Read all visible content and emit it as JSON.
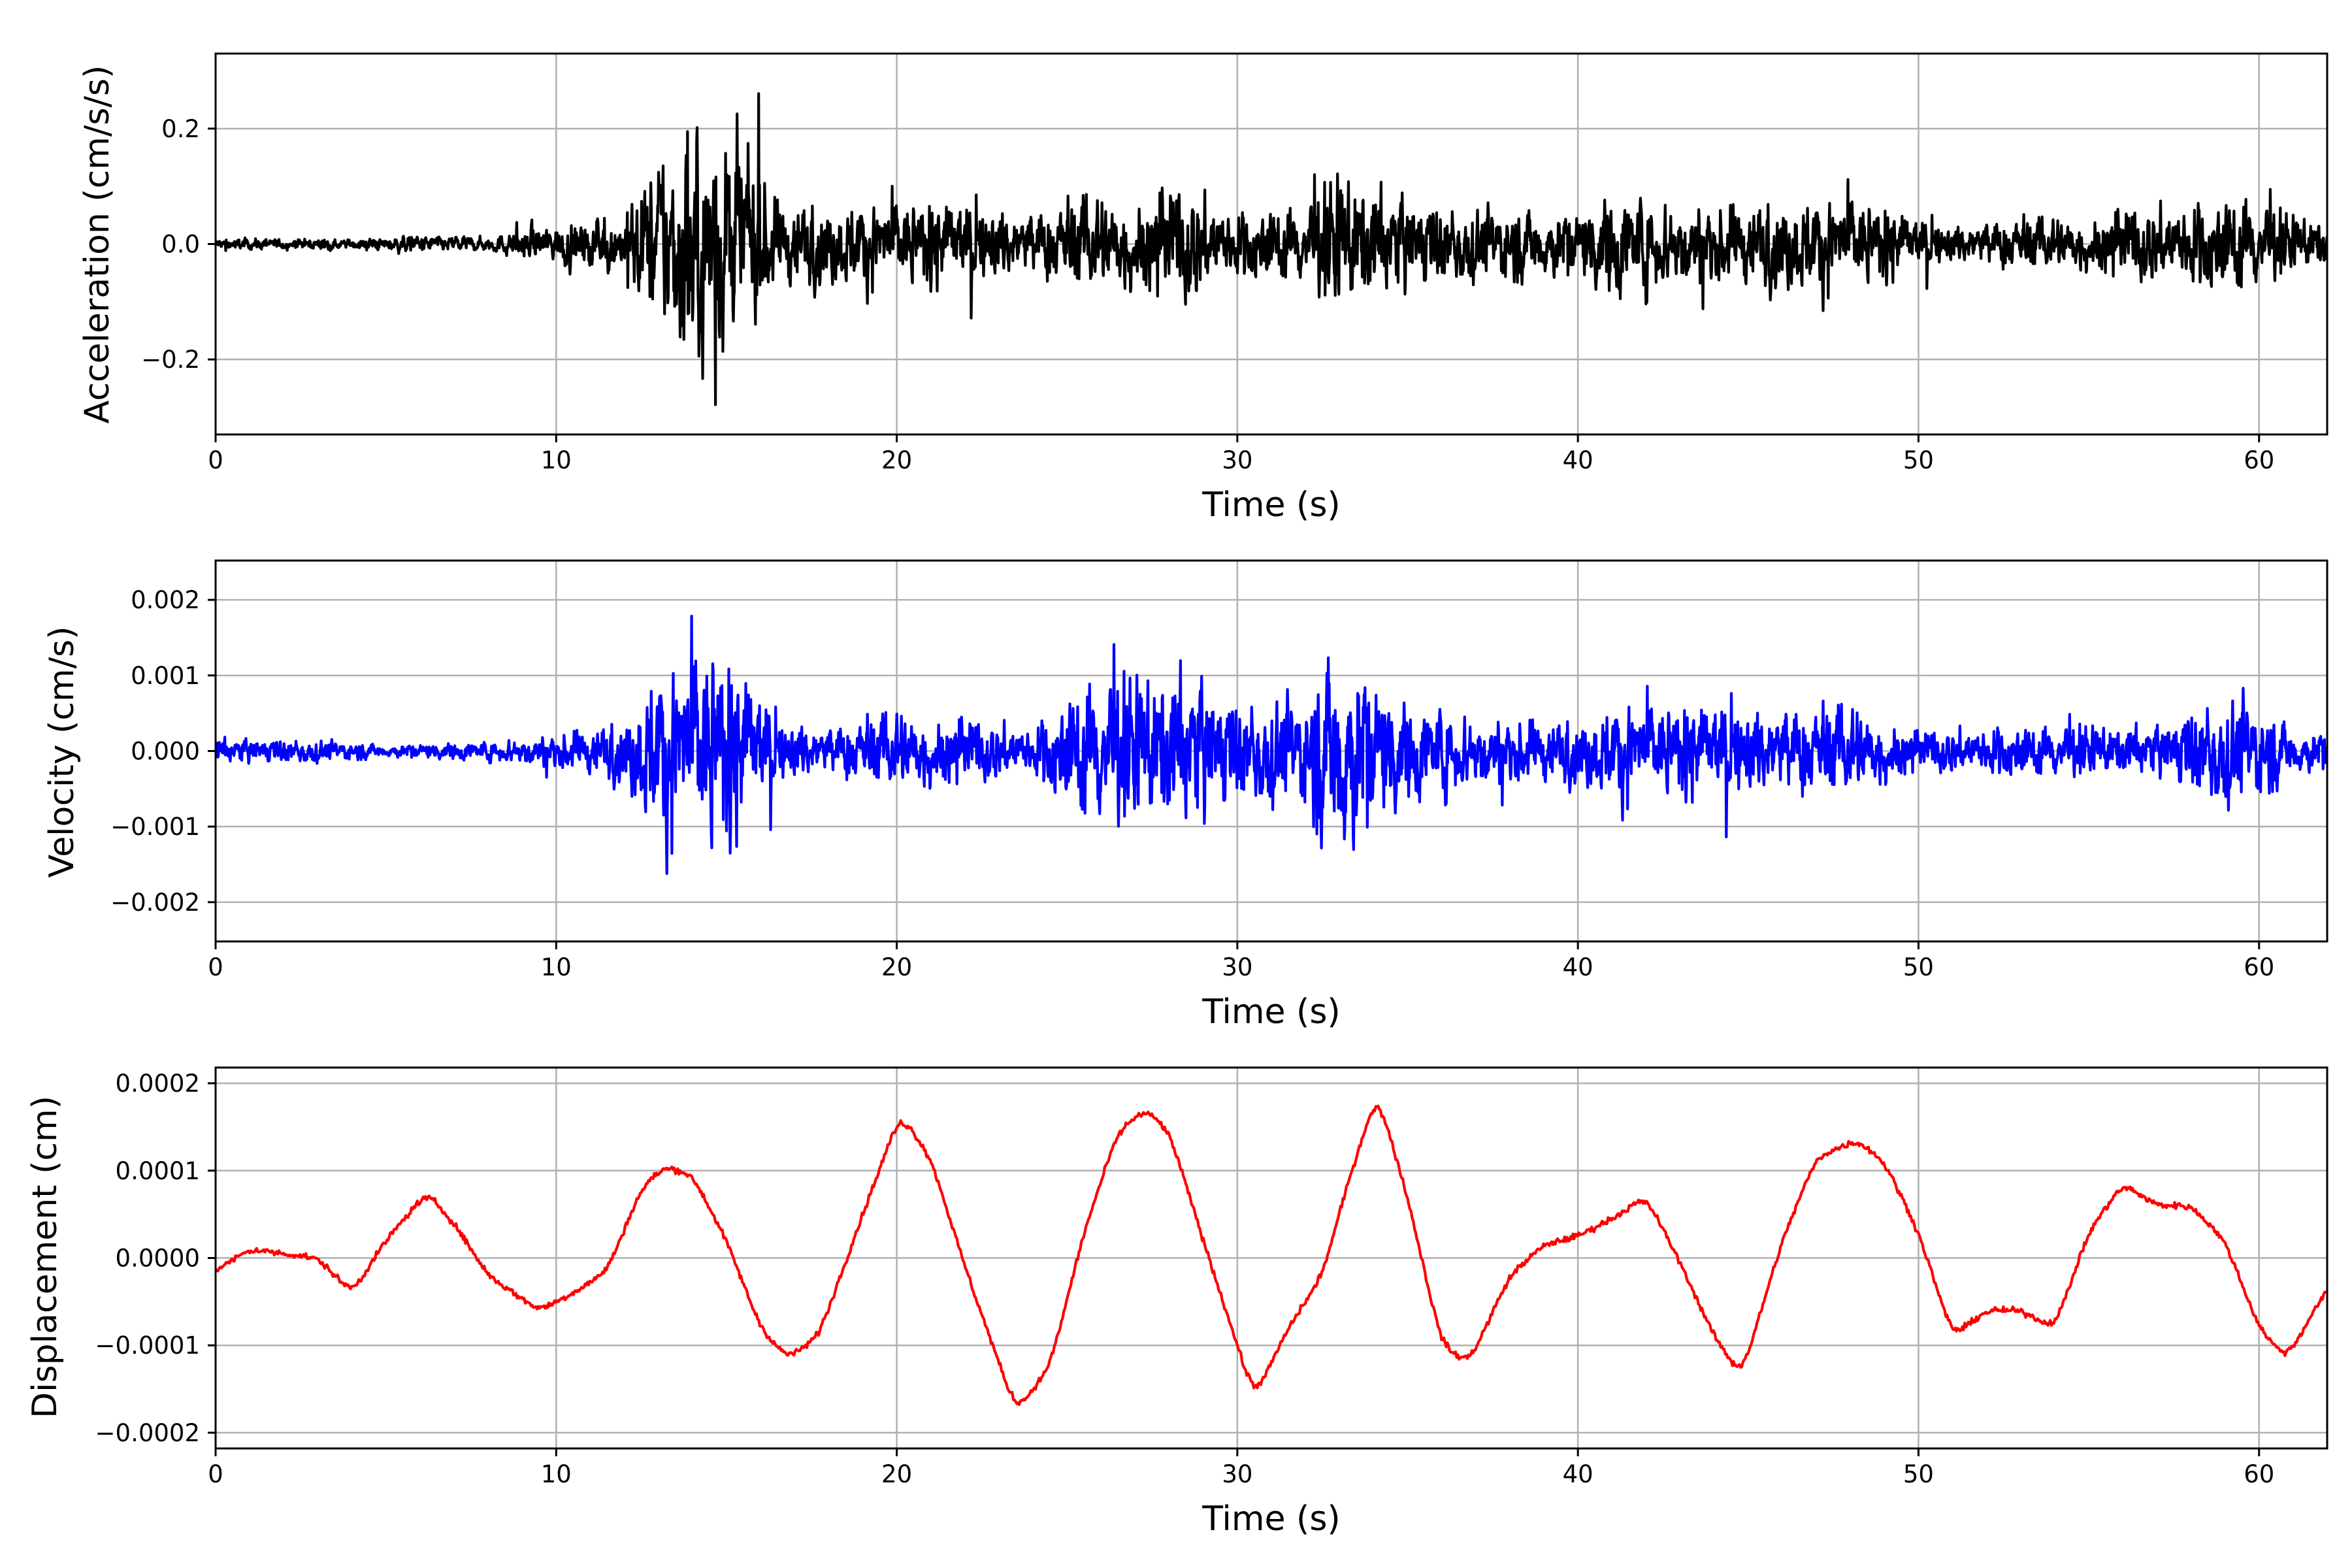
{
  "chart_data": [
    {
      "type": "line",
      "xlabel": "Time (s)",
      "ylabel": "Acceleration (cm/s/s)",
      "xlim": [
        0,
        62
      ],
      "ylim": [
        -0.33,
        0.33
      ],
      "x_ticks": [
        0,
        10,
        20,
        30,
        40,
        50,
        60
      ],
      "x_tick_labels": [
        "0",
        "10",
        "20",
        "30",
        "40",
        "50",
        "60"
      ],
      "y_ticks": [
        -0.2,
        0.0,
        0.2
      ],
      "y_tick_labels": [
        "−0.2",
        "0.0",
        "0.2"
      ],
      "grid": true,
      "color": "#000000",
      "signal": "noise",
      "envelope": {
        "t": [
          0,
          4,
          6,
          8,
          9.5,
          12,
          12.8,
          13.5,
          14.5,
          15.5,
          16.5,
          18,
          20,
          22,
          24,
          25.5,
          27,
          28.5,
          30,
          32,
          33,
          34,
          36,
          40,
          41,
          43,
          46,
          48,
          50,
          51,
          53,
          55,
          58,
          59.5,
          61,
          62
        ],
        "amplitude": [
          0.012,
          0.01,
          0.018,
          0.015,
          0.035,
          0.06,
          0.16,
          0.22,
          0.26,
          0.2,
          0.1,
          0.08,
          0.09,
          0.08,
          0.07,
          0.11,
          0.1,
          0.12,
          0.07,
          0.08,
          0.15,
          0.12,
          0.08,
          0.07,
          0.11,
          0.09,
          0.09,
          0.1,
          0.05,
          0.04,
          0.06,
          0.06,
          0.09,
          0.1,
          0.06,
          0.05
        ]
      }
    },
    {
      "type": "line",
      "xlabel": "Time (s)",
      "ylabel": "Velocity (cm/s)",
      "xlim": [
        0,
        62
      ],
      "ylim": [
        -0.00252,
        0.00252
      ],
      "x_ticks": [
        0,
        10,
        20,
        30,
        40,
        50,
        60
      ],
      "x_tick_labels": [
        "0",
        "10",
        "20",
        "30",
        "40",
        "50",
        "60"
      ],
      "y_ticks": [
        -0.002,
        -0.001,
        0.0,
        0.001,
        0.002
      ],
      "y_tick_labels": [
        "−0.002",
        "−0.001",
        "0.000",
        "0.001",
        "0.002"
      ],
      "grid": true,
      "color": "#0000ff",
      "signal": "noise",
      "envelope": {
        "t": [
          0,
          3,
          5,
          8,
          10,
          12,
          12.8,
          14,
          14.5,
          15.5,
          16.5,
          18,
          20,
          22,
          24,
          25.5,
          27,
          28.5,
          30,
          32,
          33,
          34,
          35,
          37,
          40,
          41.5,
          43,
          45,
          48,
          50,
          52,
          55,
          57,
          58.5,
          59.5,
          61,
          62
        ],
        "amplitude": [
          0.0002,
          0.00018,
          0.0001,
          0.00015,
          0.0003,
          0.0005,
          0.0012,
          0.0016,
          0.0017,
          0.0012,
          0.0005,
          0.0004,
          0.0007,
          0.0005,
          0.0004,
          0.0011,
          0.0012,
          0.0013,
          0.0008,
          0.0009,
          0.0019,
          0.0012,
          0.0008,
          0.0006,
          0.0005,
          0.0008,
          0.0007,
          0.0007,
          0.0008,
          0.0003,
          0.0004,
          0.0004,
          0.0004,
          0.0008,
          0.0009,
          0.0004,
          0.0003
        ]
      }
    },
    {
      "type": "line",
      "xlabel": "Time (s)",
      "ylabel": "Displacement (cm)",
      "xlim": [
        0,
        62
      ],
      "ylim": [
        -0.000218,
        0.000218
      ],
      "x_ticks": [
        0,
        10,
        20,
        30,
        40,
        50,
        60
      ],
      "x_tick_labels": [
        "0",
        "10",
        "20",
        "30",
        "40",
        "50",
        "60"
      ],
      "y_ticks": [
        -0.0002,
        -0.0001,
        0.0,
        0.0001,
        0.0002
      ],
      "y_tick_labels": [
        "−0.0002",
        "−0.0001",
        "0.0000",
        "0.0001",
        "0.0002"
      ],
      "grid": true,
      "color": "#ff0000",
      "signal": "curve",
      "x": [
        0,
        1,
        2,
        3,
        4,
        5,
        6.2,
        7,
        8,
        9.5,
        10.5,
        11.5,
        12.5,
        13.2,
        14,
        15,
        16,
        16.8,
        17.7,
        19,
        20.1,
        21,
        22,
        23.5,
        24.5,
        25.5,
        26.5,
        27.3,
        28,
        29,
        30.5,
        31.5,
        32.5,
        33.2,
        34.1,
        35,
        36,
        36.8,
        38,
        39,
        40,
        41,
        42,
        43,
        44,
        44.8,
        46,
        47,
        48.2,
        49,
        50,
        51,
        52,
        53,
        54,
        55,
        56,
        57,
        58,
        59,
        60,
        60.8,
        62
      ],
      "y": [
        -1.5e-05,
        1e-05,
        5e-06,
        0,
        -4e-05,
        2e-05,
        7.5e-05,
        4e-05,
        -2e-05,
        -6e-05,
        -4e-05,
        -1.5e-05,
        8e-05,
        0.000105,
        9.5e-05,
        2e-05,
        -8e-05,
        -0.000115,
        -9e-05,
        5e-05,
        0.000165,
        0.000115,
        -1e-05,
        -0.000175,
        -0.000125,
        3e-05,
        0.000145,
        0.00017,
        0.000145,
        2e-05,
        -0.00016,
        -8e-05,
        -2e-05,
        8e-05,
        0.00019,
        7e-05,
        -0.0001,
        -0.00012,
        -2e-05,
        1.5e-05,
        2.5e-05,
        4.5e-05,
        7e-05,
        -5e-06,
        -9e-05,
        -0.000135,
        2e-05,
        0.000115,
        0.000135,
        0.00011,
        3e-05,
        -9e-05,
        -6e-05,
        -6e-05,
        -8e-05,
        3e-05,
        8.5e-05,
        6e-05,
        6e-05,
        2e-05,
        -8e-05,
        -0.000115,
        -3.5e-05
      ]
    }
  ]
}
